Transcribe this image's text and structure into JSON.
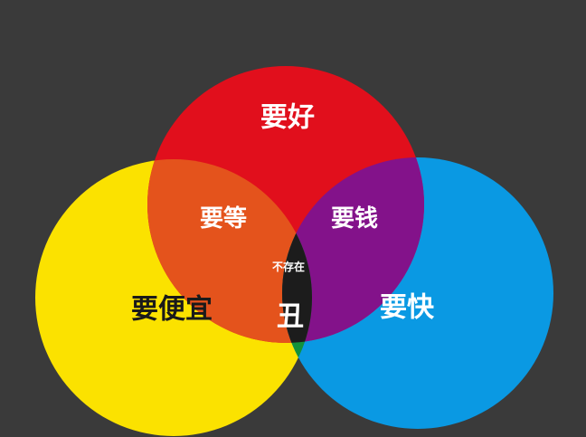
{
  "diagram": {
    "background_color": "#3a3a3a",
    "circles": {
      "good": {
        "label": "要好",
        "color": "#e10f1c"
      },
      "cheap": {
        "label": "要便宜",
        "color": "#fbe200"
      },
      "fast": {
        "label": "要快",
        "color": "#0a99e3"
      }
    },
    "overlaps": {
      "good_cheap": {
        "label": "要等",
        "color": "#e4531c"
      },
      "good_fast": {
        "label": "要钱",
        "color": "#83128a"
      },
      "cheap_fast": {
        "label": "丑",
        "color": "#12913b"
      },
      "center": {
        "label": "不存在",
        "color": "#1c1c1c"
      }
    }
  }
}
